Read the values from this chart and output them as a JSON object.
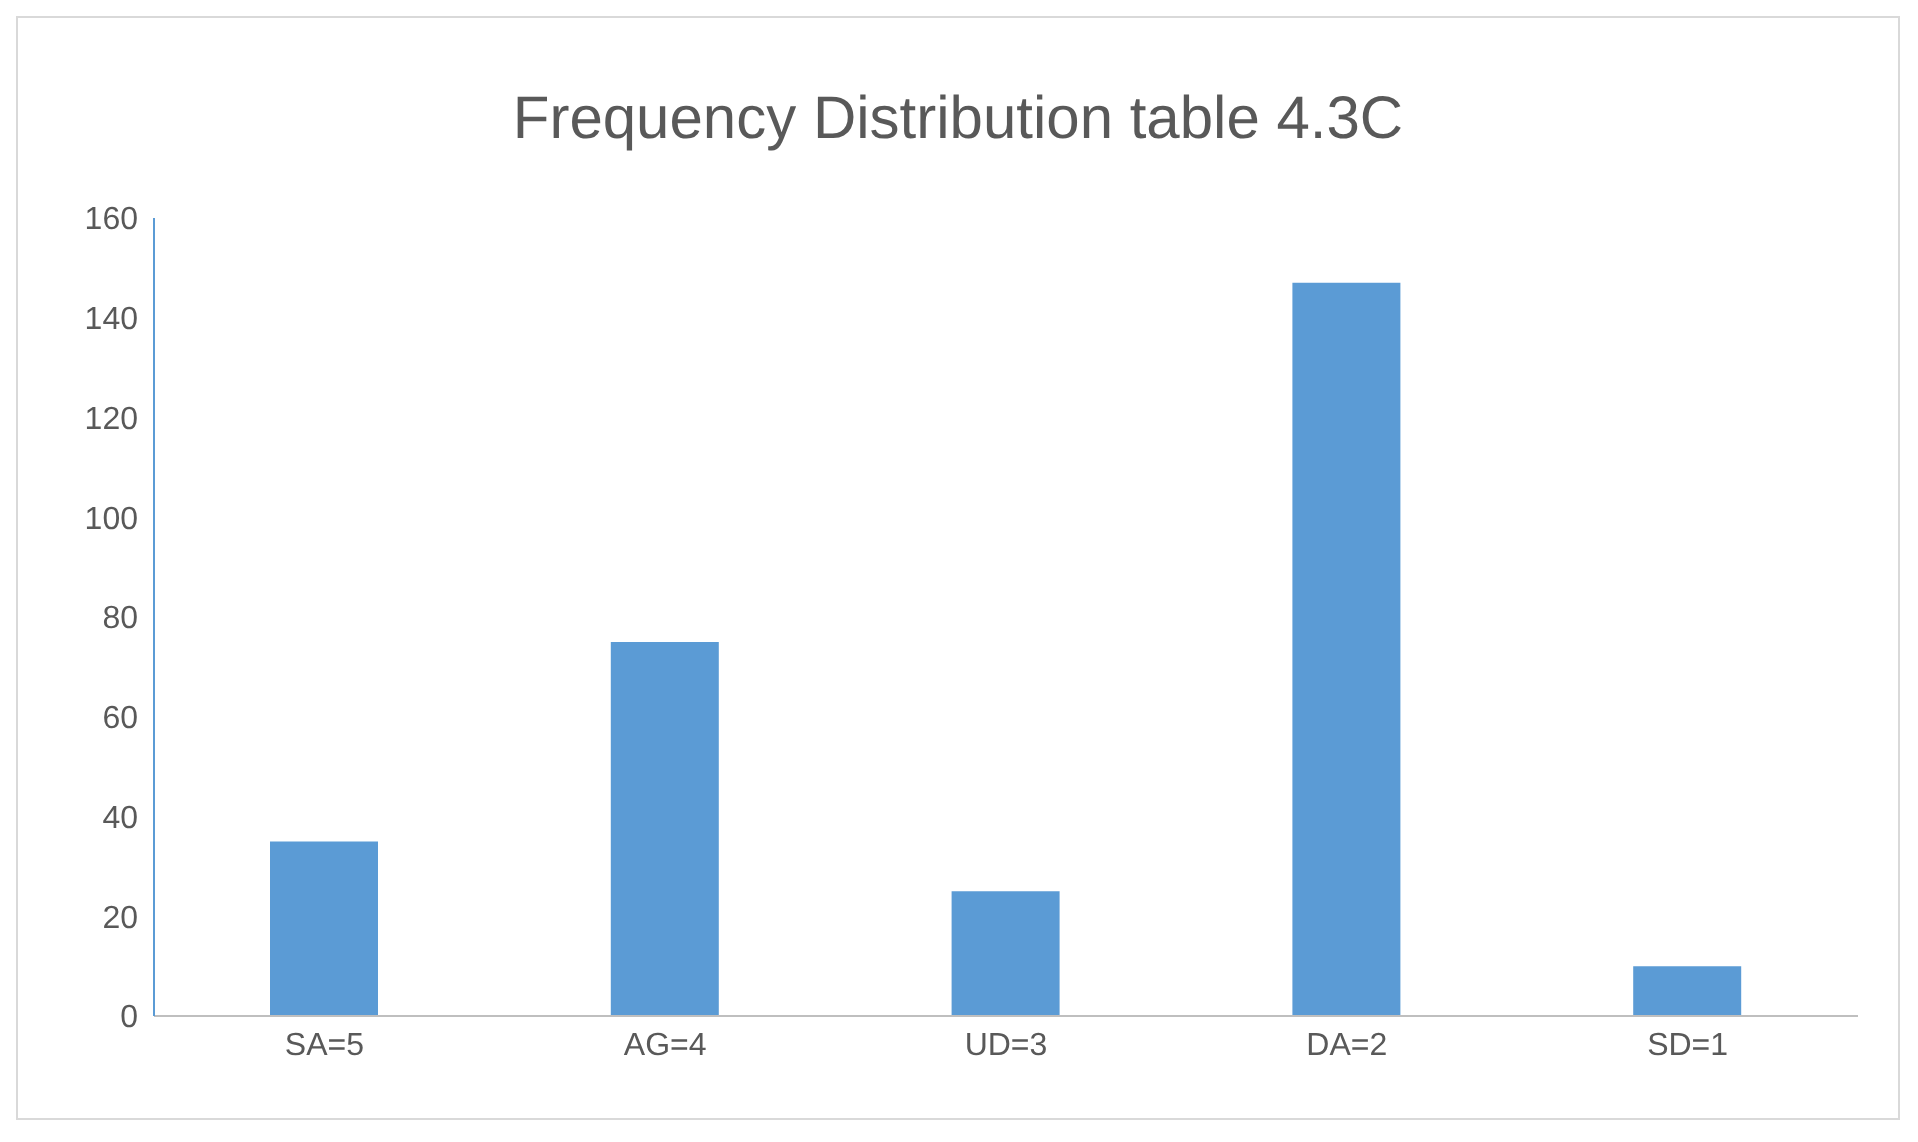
{
  "chart_data": {
    "type": "bar",
    "title": "Frequency Distribution table 4.3C",
    "categories": [
      "SA=5",
      "AG=4",
      "UD=3",
      "DA=2",
      "SD=1"
    ],
    "values": [
      35,
      75,
      25,
      147,
      10
    ],
    "color": "#5b9bd5",
    "ylim": [
      0,
      160
    ],
    "yticks": [
      0,
      20,
      40,
      60,
      80,
      100,
      120,
      140,
      160
    ],
    "grid": false
  }
}
